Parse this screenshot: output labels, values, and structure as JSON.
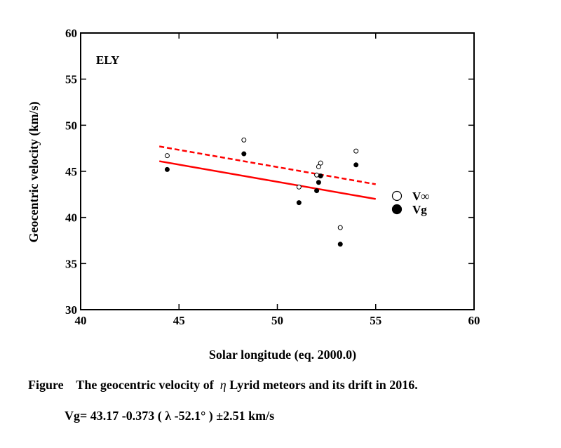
{
  "chart_data": {
    "type": "scatter",
    "panel_label": "ELY",
    "xlabel": "Solar longitude (eq. 2000.0)",
    "ylabel": "Geocentric velocity (km/s)",
    "xlim": [
      40,
      60
    ],
    "ylim": [
      30,
      60
    ],
    "x_ticks": [
      40,
      45,
      50,
      55,
      60
    ],
    "y_ticks": [
      30,
      35,
      40,
      45,
      50,
      55,
      60
    ],
    "grid": false,
    "legend_position": "right",
    "series": [
      {
        "name": "V∞",
        "marker": "open-circle",
        "points": [
          {
            "x": 44.4,
            "y": 46.7
          },
          {
            "x": 48.3,
            "y": 48.4
          },
          {
            "x": 51.1,
            "y": 43.3
          },
          {
            "x": 52.0,
            "y": 44.6
          },
          {
            "x": 52.1,
            "y": 45.5
          },
          {
            "x": 52.2,
            "y": 45.9
          },
          {
            "x": 53.2,
            "y": 38.9
          },
          {
            "x": 54.0,
            "y": 47.2
          }
        ]
      },
      {
        "name": "Vg",
        "marker": "filled-circle",
        "points": [
          {
            "x": 44.4,
            "y": 45.2
          },
          {
            "x": 48.3,
            "y": 46.9
          },
          {
            "x": 51.1,
            "y": 41.6
          },
          {
            "x": 52.0,
            "y": 42.9
          },
          {
            "x": 52.1,
            "y": 43.8
          },
          {
            "x": 52.2,
            "y": 44.5
          },
          {
            "x": 53.2,
            "y": 37.1
          },
          {
            "x": 54.0,
            "y": 45.7
          }
        ]
      }
    ],
    "fit_lines": [
      {
        "style": "dashed",
        "color": "#ff0000",
        "x": [
          44,
          55
        ],
        "y": [
          47.7,
          43.6
        ]
      },
      {
        "style": "solid",
        "color": "#ff0000",
        "x": [
          44,
          55
        ],
        "y": [
          46.1,
          42.0
        ]
      }
    ]
  },
  "caption": {
    "prefix": "Figure",
    "text": "The geocentric velocity of",
    "greek": "η",
    "suffix": "Lyrid meteors and its drift in 2016."
  },
  "formula": "Vg= 43.17 -0.373 ( λ  -52.1°  ) ±2.51 km/s"
}
